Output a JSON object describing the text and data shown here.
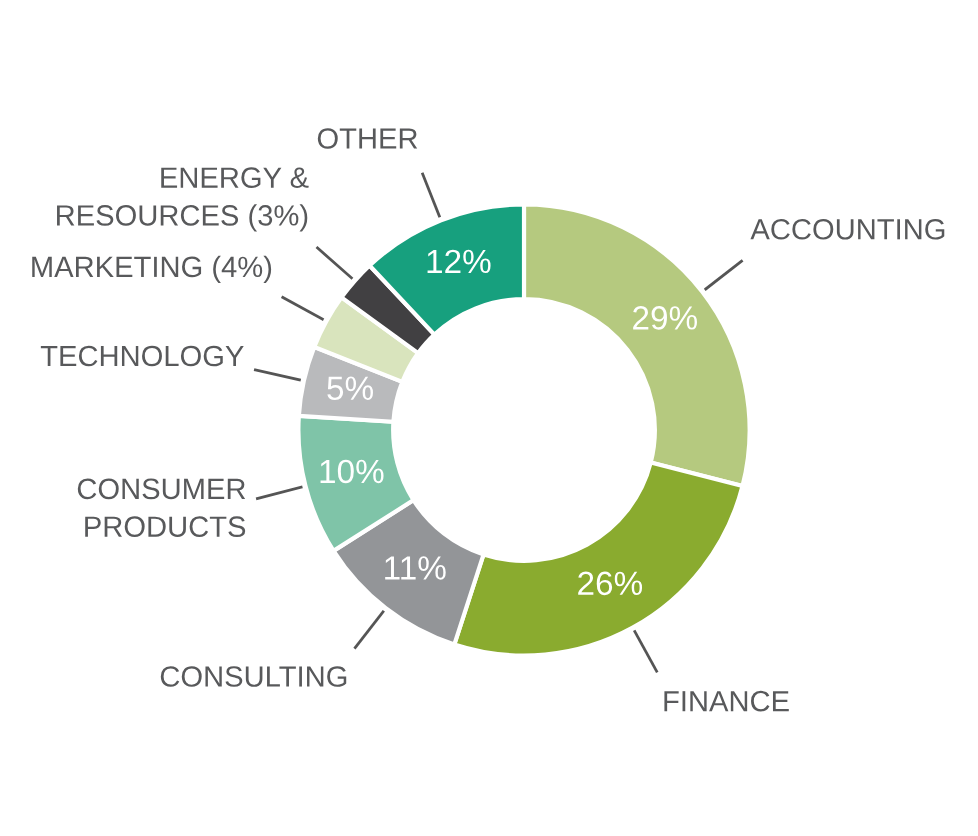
{
  "chart_data": {
    "type": "donut",
    "categories": [
      "ACCOUNTING",
      "FINANCE",
      "CONSULTING",
      "CONSUMER\nPRODUCTS",
      "TECHNOLOGY",
      "MARKETING",
      "ENERGY &\nRESOURCES",
      "OTHER"
    ],
    "values": [
      29,
      26,
      11,
      10,
      5,
      4,
      3,
      12
    ],
    "colors": [
      "#b5c97f",
      "#8aab2f",
      "#939598",
      "#7fc4a8",
      "#b9babc",
      "#d9e4bd",
      "#414042",
      "#17a07e"
    ],
    "value_labels": [
      "29%",
      "26%",
      "11%",
      "10%",
      "5%",
      "(4%)",
      "(3%)",
      "12%"
    ],
    "legend": false
  }
}
